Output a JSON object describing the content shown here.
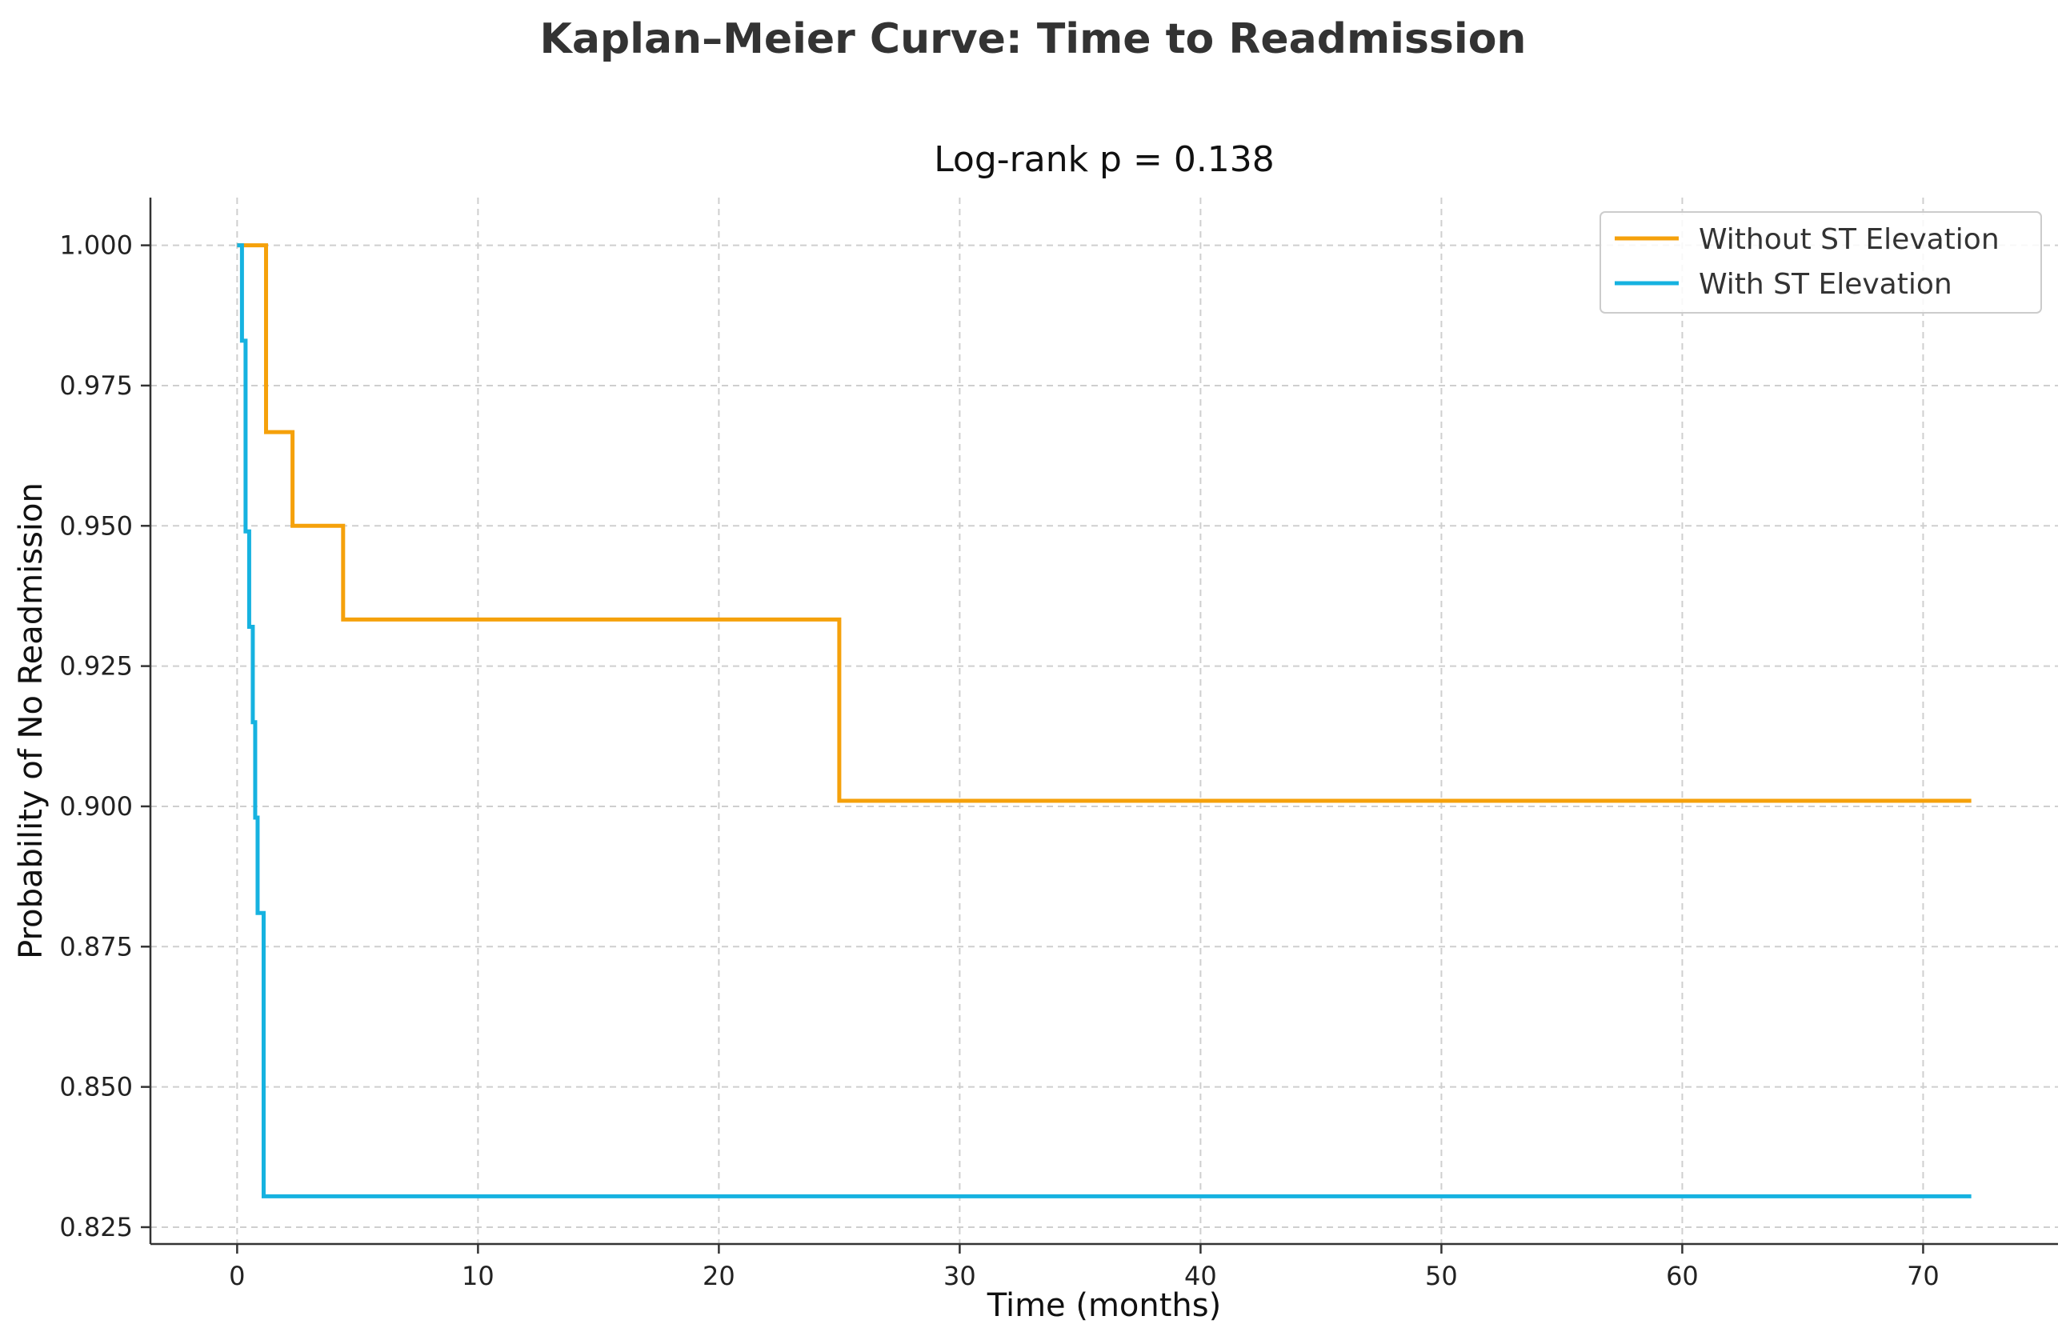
{
  "chart_data": {
    "type": "line",
    "step": "post",
    "title": "Kaplan–Meier Curve: Time to Readmission",
    "subtitle": "Log-rank p = 0.138",
    "xlabel": "Time (months)",
    "ylabel": "Probability of No Readmission",
    "xlim": [
      -3.6,
      75.6
    ],
    "ylim": [
      0.822,
      1.0085
    ],
    "xticks": [
      0,
      10,
      20,
      30,
      40,
      50,
      60,
      70
    ],
    "xtick_labels": [
      "0",
      "10",
      "20",
      "30",
      "40",
      "50",
      "60",
      "70"
    ],
    "yticks": [
      0.825,
      0.85,
      0.875,
      0.9,
      0.925,
      0.95,
      0.975,
      1.0
    ],
    "ytick_labels": [
      "0.825",
      "0.850",
      "0.875",
      "0.900",
      "0.925",
      "0.950",
      "0.975",
      "1.000"
    ],
    "grid": true,
    "legend_position": "top-right",
    "series": [
      {
        "name": "Without ST Elevation",
        "color": "#f5a10b",
        "x": [
          0,
          1.2,
          2.3,
          4.4,
          25.0,
          72.0
        ],
        "y": [
          1.0,
          0.9667,
          0.95,
          0.9333,
          0.901,
          0.901
        ]
      },
      {
        "name": "With ST Elevation",
        "color": "#16b2e0",
        "x": [
          0,
          0.2,
          0.35,
          0.5,
          0.65,
          0.75,
          0.85,
          1.1,
          72.0
        ],
        "y": [
          1.0,
          0.983,
          0.949,
          0.932,
          0.915,
          0.898,
          0.881,
          0.8305,
          0.8305
        ]
      }
    ]
  }
}
